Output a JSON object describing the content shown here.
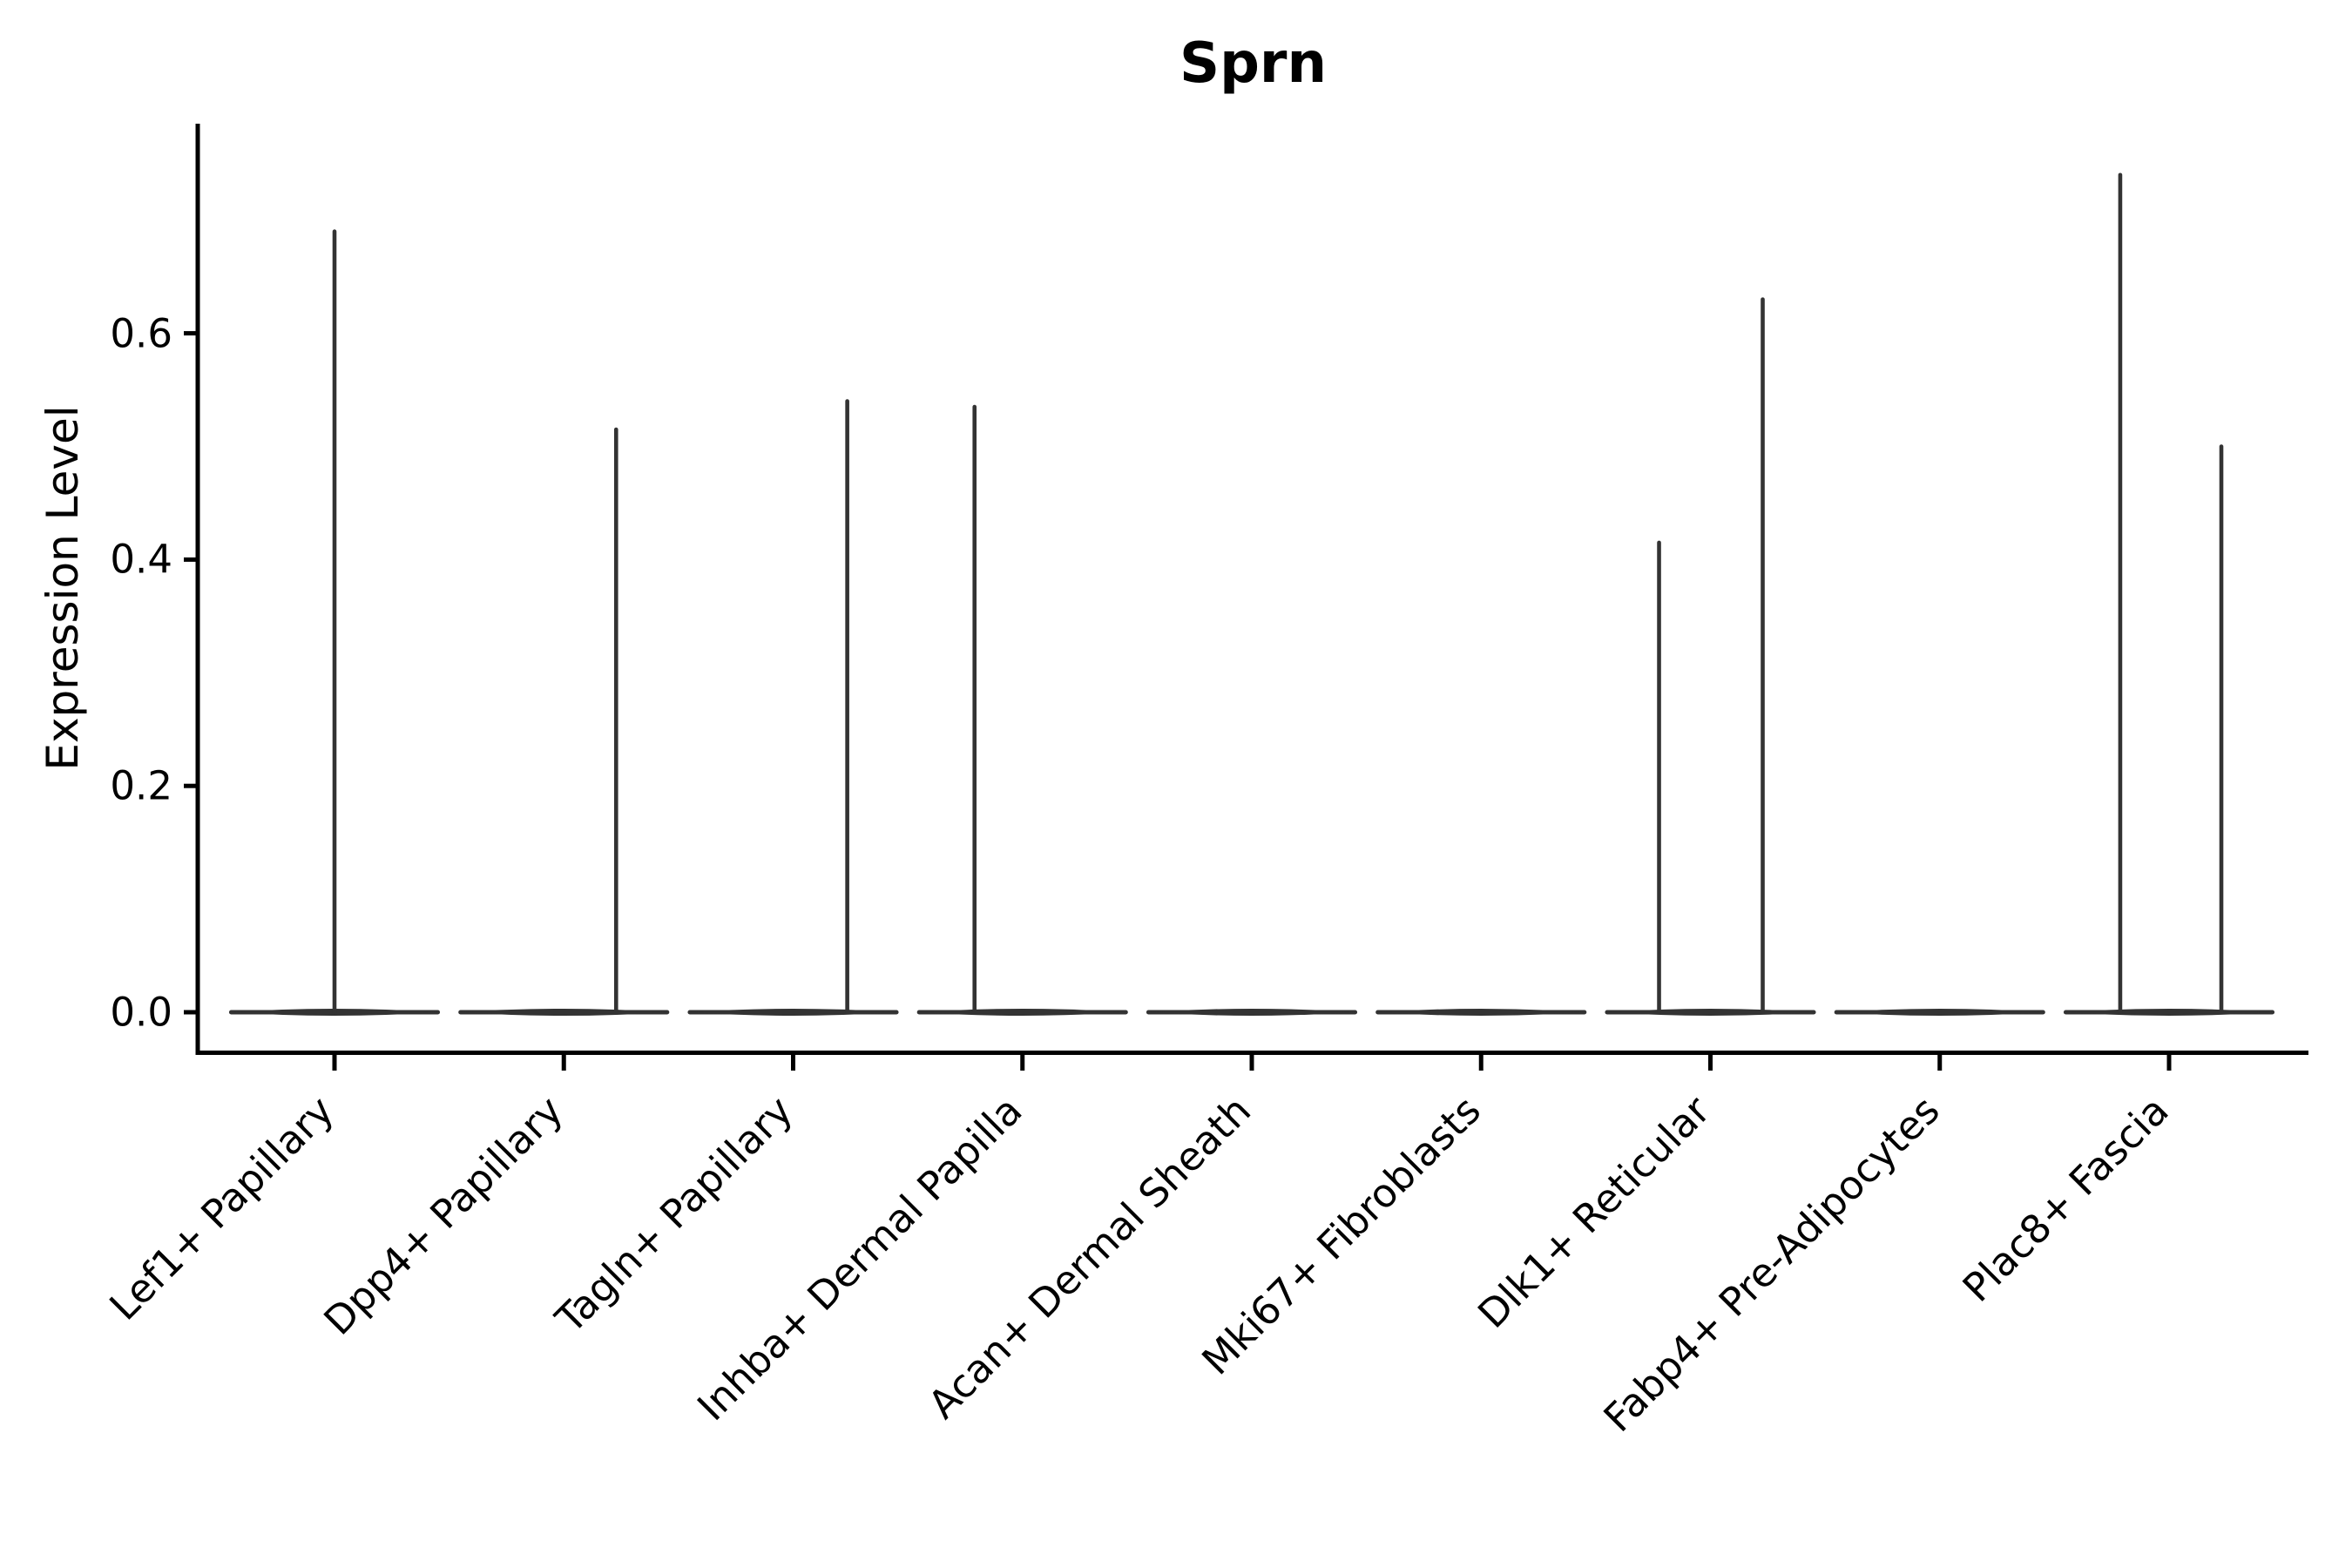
{
  "chart_data": {
    "type": "violin",
    "title": "Sprn",
    "ylabel": "Expression Level",
    "xlabel": "",
    "yticks": [
      0.0,
      0.2,
      0.4,
      0.6
    ],
    "ytick_labels": [
      "0.0",
      "0.2",
      "0.4",
      "0.6"
    ],
    "ylim": [
      -0.035,
      0.785
    ],
    "grid": false,
    "legend": "none",
    "categories": [
      "Lef1+ Papillary",
      "Dpp4+ Papillary",
      "Tagln+ Papillary",
      "Inhba+ Dermal Papilla",
      "Acan+ Dermal Sheath",
      "Mki67+ Fibroblasts",
      "Dlk1+ Reticular",
      "Fabp4+ Pre-Adipocytes",
      "Plac8+ Fascia"
    ],
    "violin_halfwidth_frac": 0.458,
    "violins": [
      {
        "category": "Lef1+ Papillary",
        "baseline_value": 0.0,
        "spikes": [
          {
            "offset_frac": 0.0,
            "max": 0.69
          }
        ]
      },
      {
        "category": "Dpp4+ Papillary",
        "baseline_value": 0.0,
        "spikes": [
          {
            "offset_frac": 0.228,
            "max": 0.515
          }
        ]
      },
      {
        "category": "Tagln+ Papillary",
        "baseline_value": 0.0,
        "spikes": [
          {
            "offset_frac": 0.236,
            "max": 0.54
          }
        ]
      },
      {
        "category": "Inhba+ Dermal Papilla",
        "baseline_value": 0.0,
        "spikes": [
          {
            "offset_frac": -0.209,
            "max": 0.535
          }
        ]
      },
      {
        "category": "Acan+ Dermal Sheath",
        "baseline_value": 0.0,
        "spikes": []
      },
      {
        "category": "Mki67+ Fibroblasts",
        "baseline_value": 0.0,
        "spikes": []
      },
      {
        "category": "Dlk1+ Reticular",
        "baseline_value": 0.0,
        "spikes": [
          {
            "offset_frac": -0.224,
            "max": 0.415
          },
          {
            "offset_frac": 0.228,
            "max": 0.63
          }
        ]
      },
      {
        "category": "Fabp4+ Pre-Adipocytes",
        "baseline_value": 0.0,
        "spikes": []
      },
      {
        "category": "Plac8+ Fascia",
        "baseline_value": 0.0,
        "spikes": [
          {
            "offset_frac": -0.213,
            "max": 0.74
          },
          {
            "offset_frac": 0.228,
            "max": 0.5
          }
        ]
      }
    ],
    "colors": {
      "background": "#ffffff",
      "axis": "#000000",
      "text": "#000000",
      "violin_edge": "#333333"
    }
  }
}
